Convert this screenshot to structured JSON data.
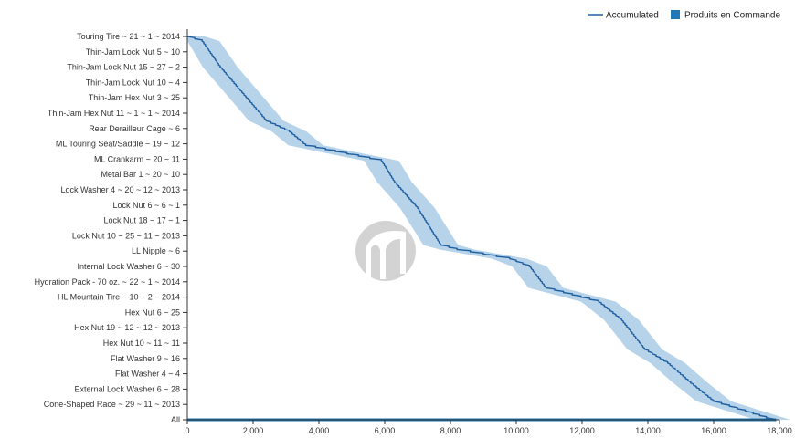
{
  "legend": {
    "line_label": "Accumulated",
    "bar_label": "Produits en Commande",
    "placement": "top-right"
  },
  "colors": {
    "line": "#1f5fa0",
    "band": "#a9cbe6",
    "bar": "#1f77b4",
    "axis": "#333333",
    "logo": "#d3d3d3"
  },
  "chart_data": {
    "type": "bar",
    "orientation": "horizontal",
    "title": "",
    "xlabel": "",
    "ylabel": "",
    "xlim": [
      0,
      18000
    ],
    "x_ticks": [
      0,
      2000,
      4000,
      6000,
      8000,
      10000,
      12000,
      14000,
      16000,
      18000
    ],
    "x_tick_labels": [
      "0",
      "2,000",
      "4,000",
      "6,000",
      "8,000",
      "10,000",
      "12,000",
      "14,000",
      "16,000",
      "18,000"
    ],
    "grid": false,
    "categories": [
      "Touring Tire ~ 21 ~ 1 ~ 2014",
      "Thin-Jam Lock Nut 5 ~ 10",
      "Thin-Jam Lock Nut 15 ~ 27 ~ 2",
      "Thin-Jam Lock Nut 10 ~ 4",
      "Thin-Jam Hex Nut 3 ~ 25",
      "Thin-Jam Hex Nut 11 ~ 1 ~ 1 ~ 2014",
      "Rear Derailleur Cage ~ 6",
      "ML Touring Seat/Saddle ~ 19 ~ 12",
      "ML Crankarm ~ 20 ~ 11",
      "Metal Bar 1 ~ 20 ~ 10",
      "Lock Washer 4 ~ 20 ~ 12 ~ 2013",
      "Lock Nut 6 ~ 6 ~ 1",
      "Lock Nut 18 ~ 17 ~ 1",
      "Lock Nut 10 ~ 25 ~ 11 ~ 2013",
      "LL Nipple ~ 6",
      "Internal Lock Washer 6 ~ 30",
      "Hydration Pack - 70 oz. ~ 22 ~ 1 ~ 2014",
      "HL Mountain Tire ~ 10 ~ 2 ~ 2014",
      "Hex Nut 6 ~ 25",
      "Hex Nut 19 ~ 12 ~ 12 ~ 2013",
      "Hex Nut 10 ~ 11 ~ 11",
      "Flat Washer 9 ~ 16",
      "Flat Washer 4 ~ 4",
      "External Lock Washer 6 ~ 28",
      "Cone-Shaped Race ~ 29 ~ 11 ~ 2013",
      "All"
    ],
    "values": [
      0,
      0,
      0,
      0,
      0,
      0,
      0,
      0,
      0,
      0,
      0,
      0,
      0,
      0,
      0,
      0,
      0,
      0,
      0,
      0,
      0,
      0,
      0,
      0,
      0,
      17900
    ],
    "accumulated": [
      {
        "x": 0,
        "y": 0
      },
      {
        "x": 450,
        "y": 0.3
      },
      {
        "x": 1000,
        "y": 2
      },
      {
        "x": 1600,
        "y": 3.5
      },
      {
        "x": 2400,
        "y": 5.5
      },
      {
        "x": 3100,
        "y": 6.2
      },
      {
        "x": 3600,
        "y": 7.1
      },
      {
        "x": 4500,
        "y": 7.5
      },
      {
        "x": 5900,
        "y": 8.1
      },
      {
        "x": 6300,
        "y": 9.5
      },
      {
        "x": 7000,
        "y": 11.2
      },
      {
        "x": 7700,
        "y": 13.6
      },
      {
        "x": 8200,
        "y": 13.9
      },
      {
        "x": 9800,
        "y": 14.5
      },
      {
        "x": 10400,
        "y": 15
      },
      {
        "x": 10900,
        "y": 16.4
      },
      {
        "x": 12500,
        "y": 17.3
      },
      {
        "x": 13200,
        "y": 18.5
      },
      {
        "x": 13900,
        "y": 20.4
      },
      {
        "x": 14600,
        "y": 21.3
      },
      {
        "x": 15300,
        "y": 22.6
      },
      {
        "x": 16000,
        "y": 23.8
      },
      {
        "x": 17200,
        "y": 24.6
      },
      {
        "x": 17800,
        "y": 25
      }
    ]
  }
}
